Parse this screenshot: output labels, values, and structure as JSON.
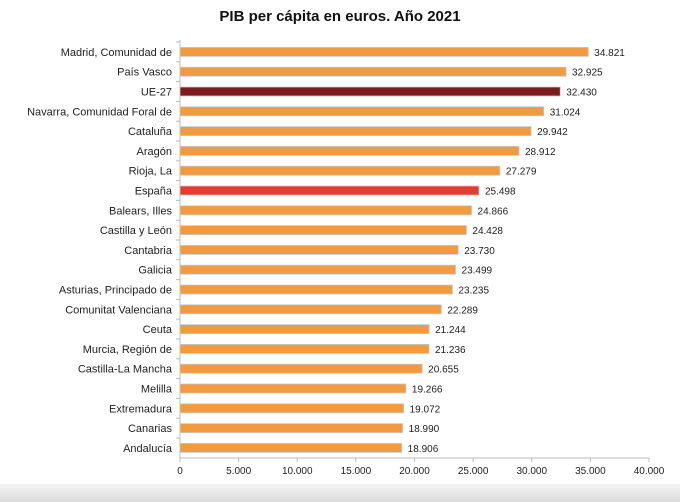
{
  "chart_data": {
    "type": "bar",
    "orientation": "horizontal",
    "title": "PIB per cápita en euros. Año 2021",
    "xlabel": "",
    "ylabel": "",
    "xlim": [
      0,
      40000
    ],
    "x_ticks": [
      "0",
      "5.000",
      "10.000",
      "15.000",
      "20.000",
      "25.000",
      "30.000",
      "35.000",
      "40.000"
    ],
    "grid": false,
    "legend": "none",
    "categories": [
      "Madrid, Comunidad de",
      "País Vasco",
      "UE-27",
      "Navarra, Comunidad Foral de",
      "Cataluña",
      "Aragón",
      "Rioja, La",
      "España",
      "Balears, Illes",
      "Castilla y León",
      "Cantabria",
      "Galicia",
      "Asturias, Principado de",
      "Comunitat Valenciana",
      "Ceuta",
      "Murcia, Región de",
      "Castilla-La Mancha",
      "Melilla",
      "Extremadura",
      "Canarias",
      "Andalucía"
    ],
    "values": [
      34821,
      32925,
      32430,
      31024,
      29942,
      28912,
      27279,
      25498,
      24866,
      24428,
      23730,
      23499,
      23235,
      22289,
      21244,
      21236,
      20655,
      19266,
      19072,
      18990,
      18906
    ],
    "data_labels": [
      "34.821",
      "32.925",
      "32.430",
      "31.024",
      "29.942",
      "28.912",
      "27.279",
      "25.498",
      "24.866",
      "24.428",
      "23.730",
      "23.499",
      "23.235",
      "22.289",
      "21.244",
      "21.236",
      "20.655",
      "19.266",
      "19.072",
      "18.990",
      "18.906"
    ],
    "colors": {
      "default": "#f29a40",
      "UE-27": "#7d1c1c",
      "España": "#e83a30"
    }
  }
}
